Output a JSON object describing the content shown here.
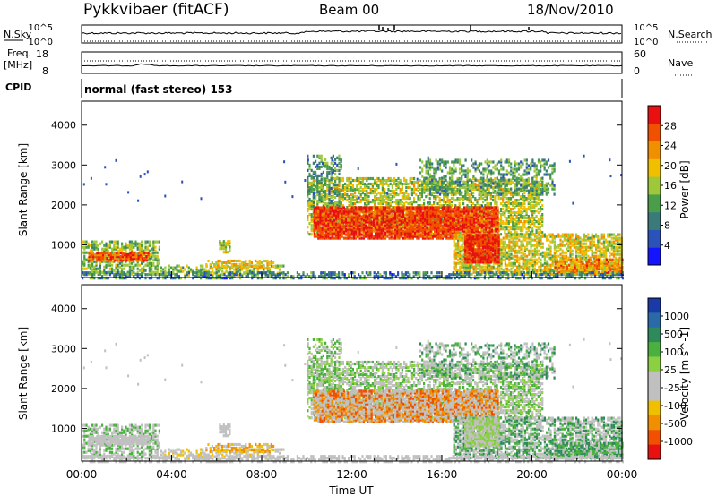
{
  "header": {
    "station": "Pykkvibaer (fitACF)",
    "beam": "Beam 00",
    "date": "18/Nov/2010"
  },
  "strip_labels": {
    "nsky": "N.Sky",
    "nsearch": "N.Search",
    "freq_line1": "Freq.",
    "freq_line2": "[MHz]",
    "nave": "Nave",
    "cpid": "CPID",
    "cpid_value": "normal (fast stereo) 153",
    "noise_ticks_left": [
      "10^5",
      "10^0"
    ],
    "noise_ticks_right": [
      "10^5",
      "10^0"
    ],
    "freq_ticks_left": [
      "18",
      "8"
    ],
    "nave_ticks_right": [
      "60",
      "0"
    ]
  },
  "chart_data": [
    {
      "type": "heatmap",
      "name": "power",
      "ylabel": "Slant Range [km]",
      "ylim": [
        180,
        4600
      ],
      "yticks": [
        "1000",
        "2000",
        "3000",
        "4000"
      ],
      "colorbar": {
        "label": "Power [dB]",
        "ticks": [
          "4",
          "8",
          "12",
          "16",
          "20",
          "24",
          "28"
        ],
        "colors": [
          "#1414ff",
          "#2a52b8",
          "#3a7a7a",
          "#4a9e4a",
          "#9ec83a",
          "#f0c000",
          "#f09000",
          "#f05000",
          "#e81010"
        ]
      }
    },
    {
      "type": "heatmap",
      "name": "velocity",
      "ylabel": "Slant Range [km]",
      "ylim": [
        180,
        4600
      ],
      "yticks": [
        "1000",
        "2000",
        "3000",
        "4000"
      ],
      "xlabel": "Time UT",
      "xticks": [
        "00:00",
        "04:00",
        "08:00",
        "12:00",
        "16:00",
        "20:00",
        "00:00"
      ],
      "colorbar": {
        "label": "Velocity [m s^-1]",
        "ticks": [
          "1000",
          "500",
          "100",
          "25",
          "-25",
          "-100",
          "-500",
          "-1000"
        ],
        "colors": [
          "#1a3aa8",
          "#2a6aa8",
          "#2e8a5a",
          "#4ab040",
          "#8ad040",
          "#c0c0c0",
          "#c0c0c0",
          "#f0c000",
          "#f09000",
          "#f05000",
          "#e81010"
        ]
      }
    }
  ]
}
